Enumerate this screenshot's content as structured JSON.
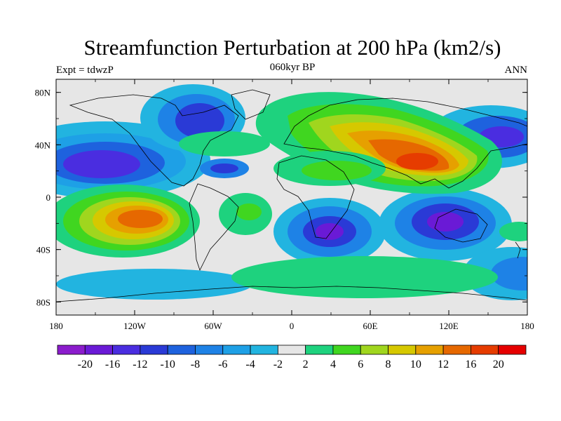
{
  "title": "Streamfunction Perturbation at 200 hPa (km2/s)",
  "experiment_label": "Expt = tdwzP",
  "period_label": "060kyr BP",
  "season_label": "ANN",
  "x_tick_labels": [
    "180",
    "120W",
    "60W",
    "0",
    "60E",
    "120E",
    "180"
  ],
  "y_tick_labels": [
    "80N",
    "40N",
    "0",
    "40S",
    "80S"
  ],
  "colorbar": {
    "labels": [
      "-20",
      "-16",
      "-12",
      "-10",
      "-8",
      "-6",
      "-4",
      "-2",
      "2",
      "4",
      "6",
      "8",
      "10",
      "12",
      "16",
      "20"
    ],
    "colors": [
      "#8b1ccc",
      "#6a1ad6",
      "#4a2de0",
      "#2a3ad6",
      "#1e62de",
      "#1e82e6",
      "#1ea0e6",
      "#22b4e0",
      "#e6e6e6",
      "#1ed27e",
      "#40d620",
      "#a0d61e",
      "#d6c800",
      "#e6a000",
      "#e66800",
      "#e63c00",
      "#e60000"
    ]
  },
  "map": {
    "lon_range": [
      -180,
      180
    ],
    "lat_range": [
      -90,
      90
    ],
    "projection": "cylindrical-equidistant"
  }
}
